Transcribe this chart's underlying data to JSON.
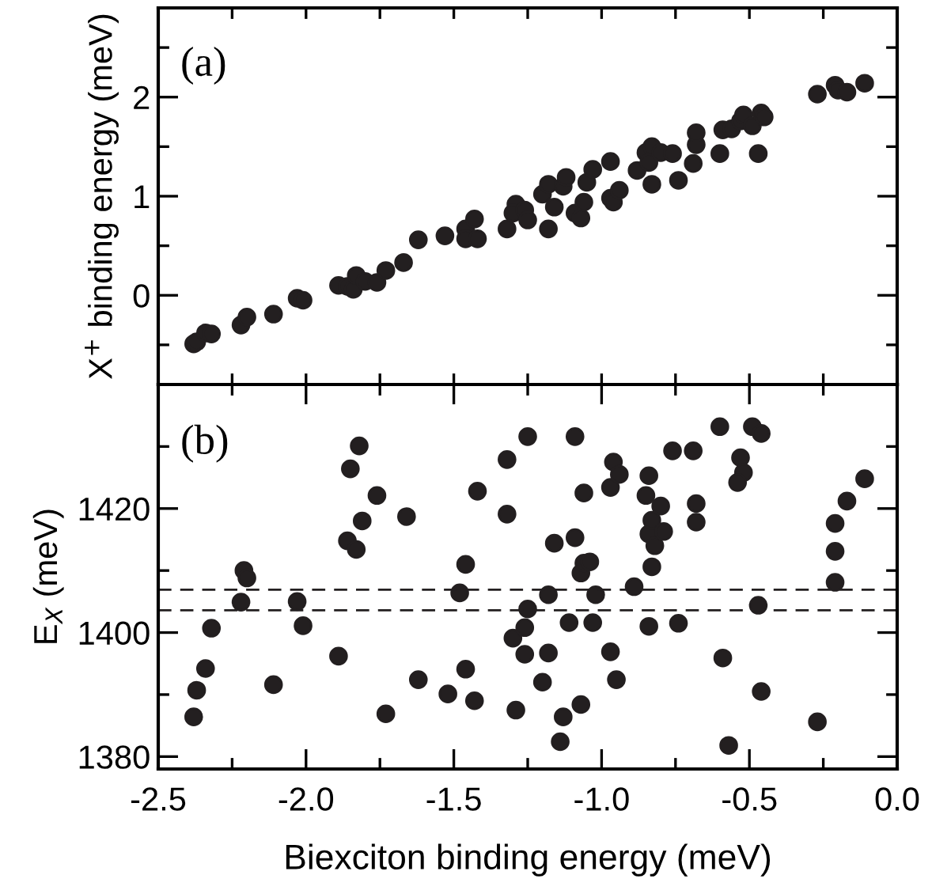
{
  "chart_data": [
    {
      "type": "scatter",
      "ylabel": "X$^{+}$ binding energy (meV)",
      "annotations": [
        "(a)"
      ],
      "marker": "circle",
      "grid": false,
      "legend": false,
      "tick_labels": "y",
      "xlim": [
        -2.5,
        0
      ],
      "ylim": [
        -0.9,
        2.9
      ],
      "xticks": [
        {
          "value": -2.5,
          "label": null
        },
        {
          "value": -2.25,
          "label": null
        },
        {
          "value": -2.0,
          "label": null
        },
        {
          "value": -1.75,
          "label": null
        },
        {
          "value": -1.5,
          "label": null
        },
        {
          "value": -1.25,
          "label": null
        },
        {
          "value": -1.0,
          "label": null
        },
        {
          "value": -0.75,
          "label": null
        },
        {
          "value": -0.5,
          "label": null
        },
        {
          "value": -0.25,
          "label": null
        },
        {
          "value": 0,
          "label": null
        }
      ],
      "yticks": [
        {
          "value": -0.5,
          "label": null
        },
        {
          "value": 0,
          "label": "0"
        },
        {
          "value": 0.5,
          "label": null
        },
        {
          "value": 1,
          "label": "1"
        },
        {
          "value": 1.5,
          "label": null
        },
        {
          "value": 2,
          "label": "2"
        },
        {
          "value": 2.5,
          "label": null
        }
      ],
      "series": [
        {
          "color": "#231f20",
          "x": [
            -2.38,
            -2.37,
            -2.34,
            -2.32,
            -2.22,
            -2.2,
            -2.11,
            -2.03,
            -2.01,
            -1.89,
            -1.86,
            -1.84,
            -1.83,
            -1.8,
            -1.76,
            -1.73,
            -1.67,
            -1.62,
            -1.53,
            -1.46,
            -1.46,
            -1.43,
            -1.42,
            -1.32,
            -1.29,
            -1.3,
            -1.26,
            -1.25,
            -1.2,
            -1.18,
            -1.18,
            -1.16,
            -1.13,
            -1.12,
            -1.09,
            -1.07,
            -1.06,
            -1.05,
            -1.03,
            -0.97,
            -0.97,
            -0.96,
            -0.94,
            -0.88,
            -0.85,
            -0.83,
            -0.83,
            -0.84,
            -0.8,
            -0.76,
            -0.74,
            -0.69,
            -0.68,
            -0.68,
            -0.6,
            -0.59,
            -0.56,
            -0.53,
            -0.52,
            -0.49,
            -0.47,
            -0.46,
            -0.45,
            -0.27,
            -0.21,
            -0.2,
            -0.17,
            -0.11
          ],
          "values": [
            -0.49,
            -0.47,
            -0.38,
            -0.39,
            -0.3,
            -0.22,
            -0.19,
            -0.03,
            -0.05,
            0.1,
            0.09,
            0.06,
            0.2,
            0.14,
            0.13,
            0.25,
            0.33,
            0.56,
            0.6,
            0.67,
            0.57,
            0.77,
            0.57,
            0.67,
            0.92,
            0.83,
            0.86,
            0.76,
            1.02,
            1.12,
            0.67,
            0.89,
            1.1,
            1.19,
            0.83,
            0.78,
            0.94,
            1.14,
            1.27,
            1.35,
            0.98,
            0.94,
            1.06,
            1.26,
            1.44,
            1.5,
            1.12,
            1.34,
            1.44,
            1.43,
            1.16,
            1.33,
            1.52,
            1.64,
            1.43,
            1.67,
            1.68,
            1.76,
            1.82,
            1.71,
            1.43,
            1.84,
            1.8,
            2.03,
            2.12,
            2.07,
            2.05,
            2.14
          ]
        }
      ]
    },
    {
      "type": "scatter",
      "xlabel": "Biexciton binding energy (meV)",
      "ylabel": "E$_{X}$ (meV)",
      "annotations": [
        "(b)"
      ],
      "marker": "circle",
      "grid": false,
      "legend": false,
      "xlim": [
        -2.5,
        0
      ],
      "ylim": [
        1378,
        1440
      ],
      "xticks": [
        {
          "value": -2.5,
          "label": "-2.5"
        },
        {
          "value": -2.25,
          "label": null
        },
        {
          "value": -2.0,
          "label": "-2.0"
        },
        {
          "value": -1.75,
          "label": null
        },
        {
          "value": -1.5,
          "label": "-1.5"
        },
        {
          "value": -1.25,
          "label": null
        },
        {
          "value": -1.0,
          "label": "-1.0"
        },
        {
          "value": -0.75,
          "label": null
        },
        {
          "value": -0.5,
          "label": "-0.5"
        },
        {
          "value": -0.25,
          "label": null
        },
        {
          "value": 0,
          "label": "0.0"
        }
      ],
      "yticks": [
        {
          "value": 1380,
          "label": "1380"
        },
        {
          "value": 1390,
          "label": null
        },
        {
          "value": 1400,
          "label": "1400"
        },
        {
          "value": 1410,
          "label": null
        },
        {
          "value": 1420,
          "label": "1420"
        },
        {
          "value": 1430,
          "label": null
        }
      ],
      "ref_lines": [
        {
          "axis": "y",
          "value": 1406.9,
          "color": "#231f20",
          "line_style": "dashed"
        },
        {
          "axis": "y",
          "value": 1403.6,
          "color": "#231f20",
          "line_style": "dashed"
        }
      ],
      "series": [
        {
          "color": "#231f20",
          "x": [
            -2.38,
            -2.37,
            -2.34,
            -2.32,
            -2.22,
            -2.21,
            -2.2,
            -2.11,
            -2.03,
            -2.01,
            -1.89,
            -1.86,
            -1.83,
            -1.85,
            -1.82,
            -1.81,
            -1.76,
            -1.73,
            -1.66,
            -1.62,
            -1.52,
            -1.48,
            -1.46,
            -1.46,
            -1.43,
            -1.42,
            -1.32,
            -1.32,
            -1.3,
            -1.29,
            -1.26,
            -1.26,
            -1.25,
            -1.25,
            -1.2,
            -1.18,
            -1.18,
            -1.16,
            -1.14,
            -1.13,
            -1.11,
            -1.09,
            -1.09,
            -1.07,
            -1.07,
            -1.06,
            -1.04,
            -1.06,
            -1.03,
            -1.02,
            -0.97,
            -0.96,
            -0.97,
            -0.95,
            -0.94,
            -0.89,
            -0.85,
            -0.84,
            -0.84,
            -0.83,
            -0.82,
            -0.79,
            -0.8,
            -0.83,
            -0.84,
            -0.76,
            -0.74,
            -0.69,
            -0.68,
            -0.68,
            -0.6,
            -0.59,
            -0.57,
            -0.53,
            -0.52,
            -0.54,
            -0.49,
            -0.46,
            -0.47,
            -0.46,
            -0.27,
            -0.21,
            -0.21,
            -0.21,
            -0.17,
            -0.11
          ],
          "values": [
            1386.4,
            1390.7,
            1394.2,
            1400.7,
            1404.9,
            1410.0,
            1408.8,
            1391.6,
            1405.0,
            1401.1,
            1396.2,
            1414.8,
            1413.4,
            1426.4,
            1430.1,
            1418.0,
            1422.1,
            1386.9,
            1418.7,
            1392.4,
            1390.1,
            1406.4,
            1411.0,
            1394.1,
            1389.0,
            1422.8,
            1427.9,
            1419.1,
            1399.1,
            1387.5,
            1400.8,
            1396.5,
            1403.8,
            1431.6,
            1392.0,
            1396.7,
            1406.1,
            1414.4,
            1382.4,
            1386.4,
            1401.6,
            1415.3,
            1431.6,
            1388.4,
            1409.6,
            1411.2,
            1411.4,
            1422.5,
            1401.6,
            1406.1,
            1423.4,
            1427.5,
            1396.9,
            1392.4,
            1425.5,
            1407.4,
            1422.1,
            1425.3,
            1415.9,
            1418.1,
            1414.0,
            1416.3,
            1420.4,
            1410.6,
            1401.0,
            1429.3,
            1401.5,
            1429.3,
            1420.8,
            1417.8,
            1433.2,
            1395.9,
            1381.8,
            1428.2,
            1425.8,
            1424.2,
            1433.2,
            1432.1,
            1404.4,
            1390.5,
            1385.6,
            1408.1,
            1413.1,
            1417.6,
            1421.2,
            1424.8
          ]
        }
      ]
    }
  ]
}
